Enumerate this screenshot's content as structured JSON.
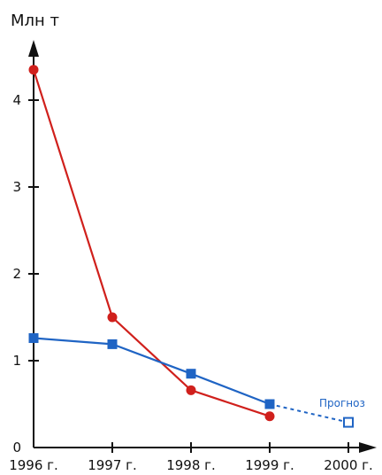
{
  "chart_data": {
    "type": "line",
    "title": "",
    "xlabel": "",
    "ylabel": "Млн т",
    "categories": [
      "1996 г.",
      "1997 г.",
      "1998 г.",
      "1999 г.",
      "2000 г."
    ],
    "y_ticks": [
      "0",
      "1",
      "2",
      "3",
      "4"
    ],
    "ylim": [
      0,
      4.5
    ],
    "grid": false,
    "series": [
      {
        "color": "#d0201c",
        "marker": "circle",
        "values": [
          4.35,
          1.5,
          0.66,
          0.36,
          null
        ]
      },
      {
        "color": "#1f64c4",
        "marker": "square",
        "values": [
          1.26,
          1.19,
          0.85,
          0.5,
          null
        ],
        "forecast": {
          "from_index": 3,
          "to_index": 4,
          "values": [
            0.5,
            0.29
          ],
          "style": "dashed",
          "marker": "hollow-square"
        }
      }
    ],
    "annotations": [
      {
        "text": "Прогноз",
        "color": "#1f64c4"
      }
    ]
  }
}
